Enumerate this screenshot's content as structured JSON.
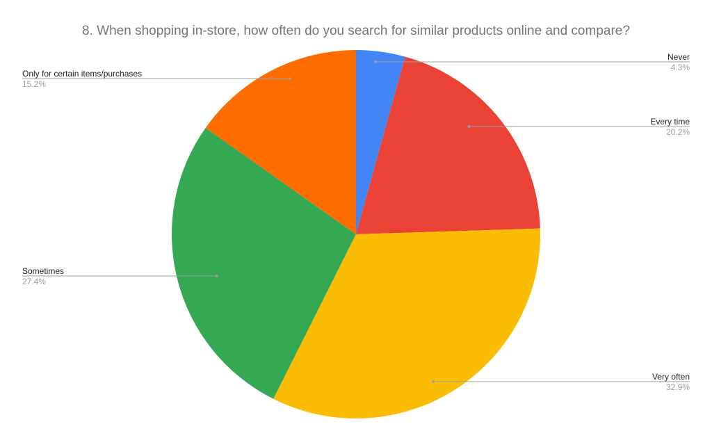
{
  "chart_data": {
    "type": "pie",
    "title": "8. When shopping in-store, how often do you search for similar products online and compare?",
    "slices": [
      {
        "label": "Never",
        "value": 4.3,
        "display": "4.3%",
        "color": "#4285f4"
      },
      {
        "label": "Every time",
        "value": 20.2,
        "display": "20.2%",
        "color": "#ea4335"
      },
      {
        "label": "Very often",
        "value": 32.9,
        "display": "32.9%",
        "color": "#fbbc04"
      },
      {
        "label": "Sometimes",
        "value": 27.4,
        "display": "27.4%",
        "color": "#34a853"
      },
      {
        "label": "Only for certain items/purchases",
        "value": 15.2,
        "display": "15.2%",
        "color": "#ff6d01"
      }
    ],
    "start_angle": "top",
    "direction": "clockwise",
    "legend": "none",
    "data_labels": "outside-with-leader-lines"
  }
}
